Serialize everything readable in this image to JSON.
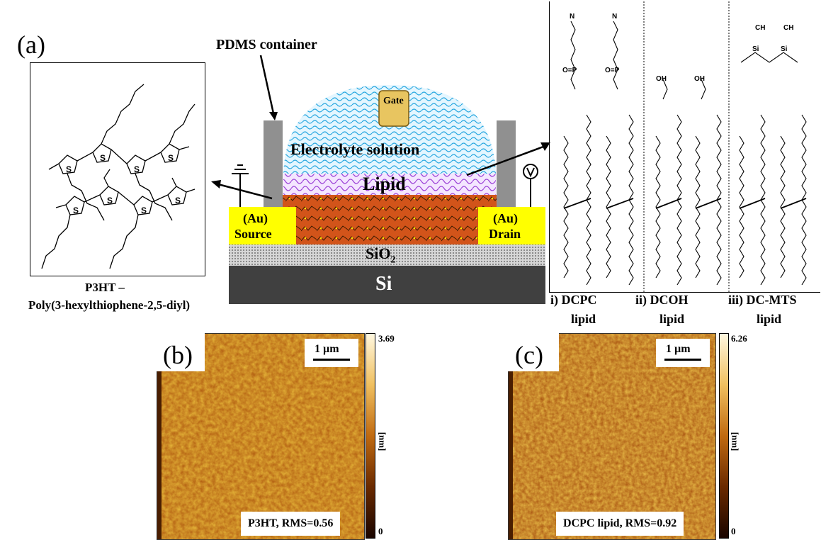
{
  "panel_a": {
    "letter": "(a)",
    "pdms_label": "PDMS container",
    "gate_label": "Gate",
    "electrolyte_label": "Electrolyte solution",
    "lipid_label": "Lipid",
    "source_label_1": "(Au)",
    "source_label_2": "Source",
    "drain_label_1": "(Au)",
    "drain_label_2": "Drain",
    "sio2_label": "SiO",
    "sio2_sub": "2",
    "si_label": "Si",
    "p3ht_title": "P3HT –",
    "p3ht_name": "Poly(3-hexylthiophene-2,5-diyl)",
    "lipid_types": [
      {
        "line1": "i) DCPC",
        "line2": "lipid"
      },
      {
        "line1": "ii) DCOH",
        "line2": "lipid"
      },
      {
        "line1": "iii) DC-MTS",
        "line2": "lipid"
      }
    ]
  },
  "panel_b": {
    "letter": "(b)",
    "scale_label": "1 µm",
    "rms_label": "P3HT, RMS=0.56",
    "cbar_max": "3.69",
    "cbar_min": "0",
    "cbar_unit": "[nm]"
  },
  "panel_c": {
    "letter": "(c)",
    "scale_label": "1 µm",
    "rms_label": "DCPC lipid, RMS=0.92",
    "cbar_max": "6.26",
    "cbar_min": "0",
    "cbar_unit": "[nm]"
  },
  "colors": {
    "electrode": "#ffff00",
    "p3ht_layer": "#d2541a",
    "electrolyte": "#40b8f0",
    "lipid_layer": "#a040d0",
    "gate": "#e8c560",
    "si": "#404040",
    "sio2": "#c8c8c8",
    "pdms": "#909090"
  }
}
